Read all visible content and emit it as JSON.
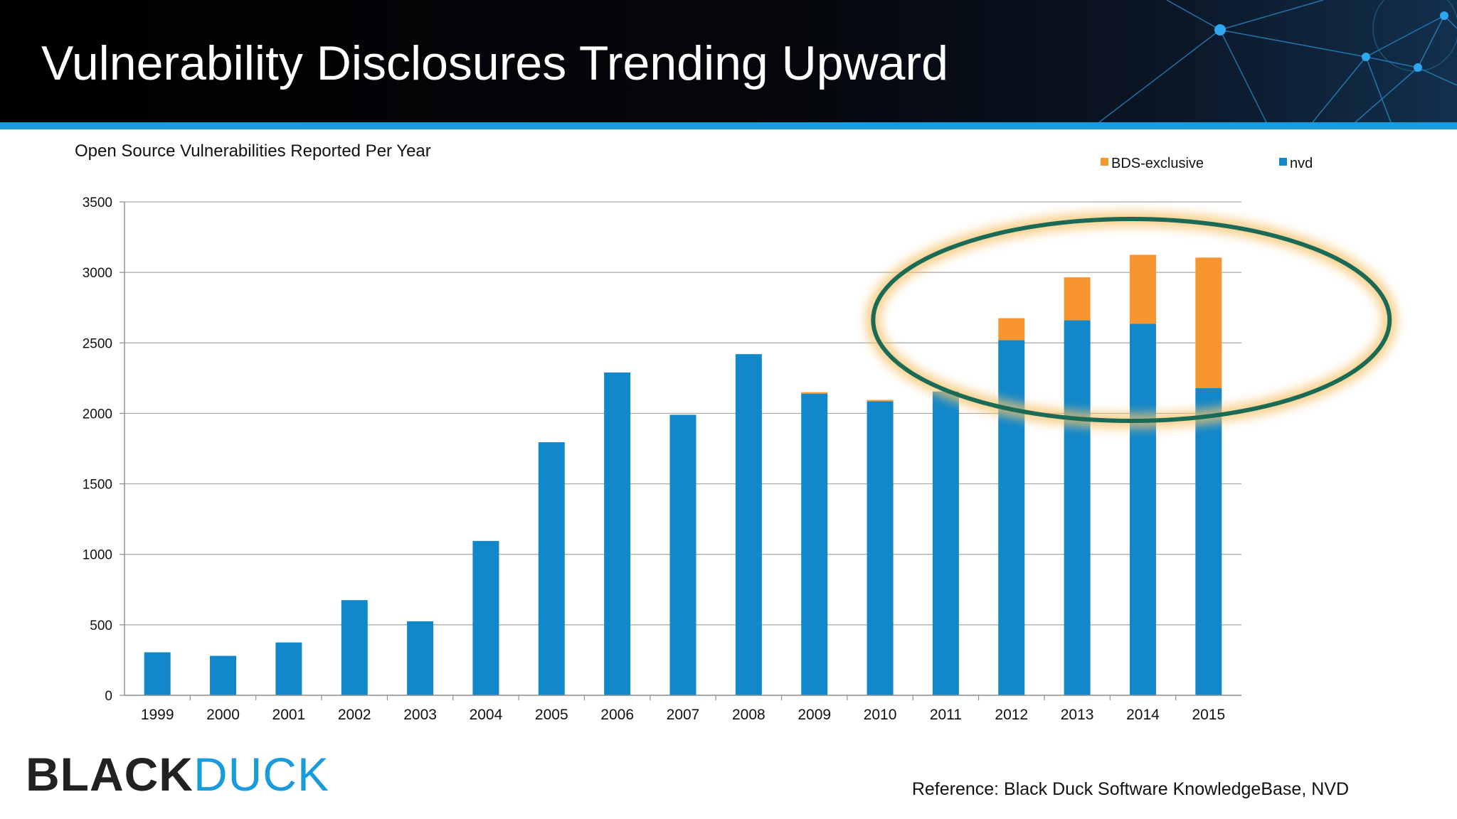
{
  "slide": {
    "title": "Vulnerability Disclosures Trending Upward",
    "reference": "Reference: Black Duck Software KnowledgeBase, NVD",
    "logo": {
      "part1": "BLACK",
      "part2": "DUCK"
    },
    "colors": {
      "header_bg": "#000000",
      "accent_stripe": "#1a9bdc",
      "nvd": "#1287c9",
      "bds_exclusive": "#f7962f",
      "highlight_ellipse": "#1b6a55",
      "highlight_glow": "#f5c26b"
    }
  },
  "chart_data": {
    "type": "bar",
    "stacked": true,
    "title": "Open Source Vulnerabilities Reported Per Year",
    "xlabel": "",
    "ylabel": "",
    "ylim": [
      0,
      3500
    ],
    "yticks": [
      0,
      500,
      1000,
      1500,
      2000,
      2500,
      3000,
      3500
    ],
    "grid": true,
    "legend_position": "top-right",
    "categories": [
      "1999",
      "2000",
      "2001",
      "2002",
      "2003",
      "2004",
      "2005",
      "2006",
      "2007",
      "2008",
      "2009",
      "2010",
      "2011",
      "2012",
      "2013",
      "2014",
      "2015"
    ],
    "series": [
      {
        "name": "nvd",
        "color": "#1287c9",
        "values": [
          305,
          280,
          375,
          675,
          525,
          1095,
          1795,
          2290,
          1990,
          2420,
          2140,
          2085,
          2155,
          2520,
          2660,
          2635,
          2180
        ]
      },
      {
        "name": "BDS-exclusive",
        "color": "#f7962f",
        "values": [
          0,
          0,
          0,
          0,
          0,
          0,
          0,
          0,
          0,
          0,
          10,
          10,
          0,
          155,
          305,
          490,
          925
        ]
      }
    ],
    "legend_order": [
      "BDS-exclusive",
      "nvd"
    ],
    "annotations": [
      {
        "type": "ellipse",
        "description": "highlight",
        "categories": [
          "2012",
          "2013",
          "2014",
          "2015"
        ]
      }
    ]
  }
}
